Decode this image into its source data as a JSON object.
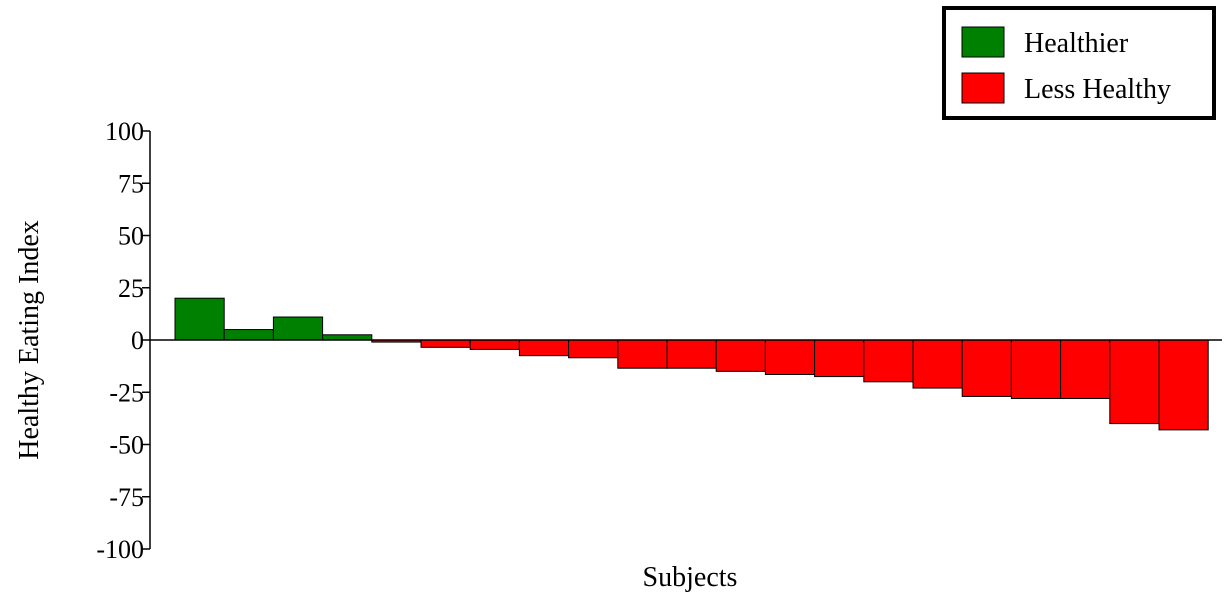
{
  "chart_data": {
    "type": "bar",
    "title": "",
    "xlabel": "Subjects",
    "ylabel": "Healthy Eating Index",
    "ylim": [
      -100,
      100
    ],
    "yticks": [
      100,
      75,
      50,
      25,
      0,
      -25,
      -50,
      -75,
      -100
    ],
    "grid": false,
    "legend_position": "top-right",
    "legend": [
      {
        "label": "Healthier",
        "color": "#008000"
      },
      {
        "label": "Less Healthy",
        "color": "#ff0000"
      }
    ],
    "colors": {
      "positive": "#008000",
      "negative": "#ff0000"
    },
    "values": [
      20,
      5,
      11,
      2.5,
      -1,
      -3.5,
      -4.5,
      -7.5,
      -8.5,
      -13.5,
      -13.5,
      -15,
      -16.5,
      -17.5,
      -20,
      -23,
      -27,
      -28,
      -28,
      -40,
      -43
    ]
  }
}
